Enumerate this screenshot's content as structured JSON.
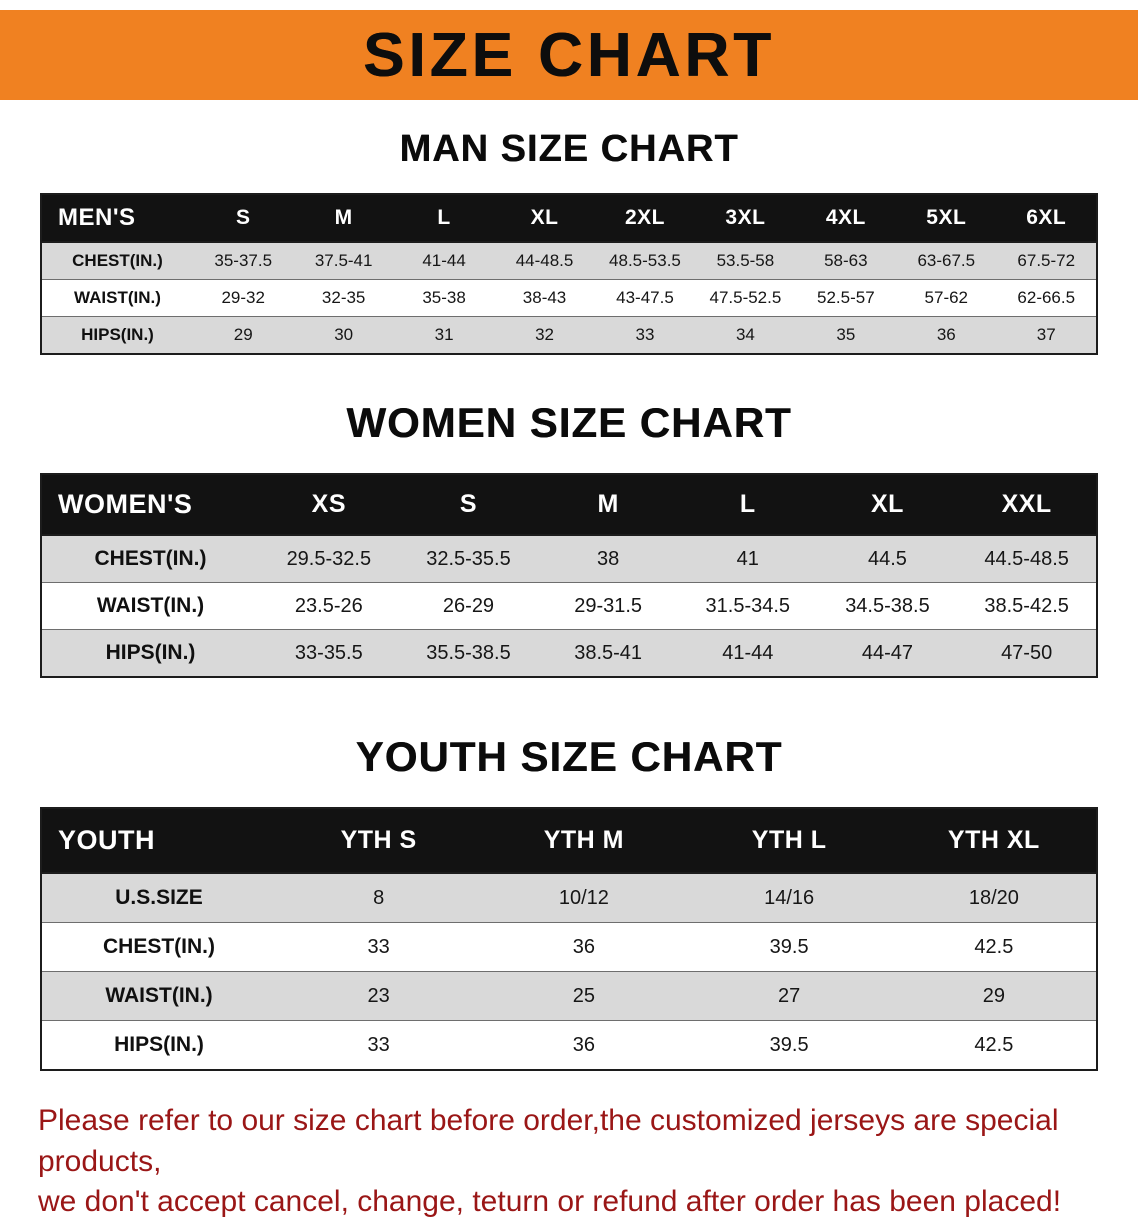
{
  "banner": {
    "title": "SIZE CHART"
  },
  "sections": [
    {
      "heading": "MAN SIZE CHART",
      "table": {
        "header": [
          "MEN'S",
          "S",
          "M",
          "L",
          "XL",
          "2XL",
          "3XL",
          "4XL",
          "5XL",
          "6XL"
        ],
        "rows": [
          [
            "CHEST(IN.)",
            "35-37.5",
            "37.5-41",
            "41-44",
            "44-48.5",
            "48.5-53.5",
            "53.5-58",
            "58-63",
            "63-67.5",
            "67.5-72"
          ],
          [
            "WAIST(IN.)",
            "29-32",
            "32-35",
            "35-38",
            "38-43",
            "43-47.5",
            "47.5-52.5",
            "52.5-57",
            "57-62",
            "62-66.5"
          ],
          [
            "HIPS(IN.)",
            "29",
            "30",
            "31",
            "32",
            "33",
            "34",
            "35",
            "36",
            "37"
          ]
        ]
      }
    },
    {
      "heading": "WOMEN SIZE CHART",
      "table": {
        "header": [
          "WOMEN'S",
          "XS",
          "S",
          "M",
          "L",
          "XL",
          "XXL"
        ],
        "rows": [
          [
            "CHEST(IN.)",
            "29.5-32.5",
            "32.5-35.5",
            "38",
            "41",
            "44.5",
            "44.5-48.5"
          ],
          [
            "WAIST(IN.)",
            "23.5-26",
            "26-29",
            "29-31.5",
            "31.5-34.5",
            "34.5-38.5",
            "38.5-42.5"
          ],
          [
            "HIPS(IN.)",
            "33-35.5",
            "35.5-38.5",
            "38.5-41",
            "41-44",
            "44-47",
            "47-50"
          ]
        ]
      }
    },
    {
      "heading": "YOUTH SIZE CHART",
      "table": {
        "header": [
          "YOUTH",
          "YTH S",
          "YTH M",
          "YTH L",
          "YTH XL"
        ],
        "rows": [
          [
            "U.S.SIZE",
            "8",
            "10/12",
            "14/16",
            "18/20"
          ],
          [
            "CHEST(IN.)",
            "33",
            "36",
            "39.5",
            "42.5"
          ],
          [
            "WAIST(IN.)",
            "23",
            "25",
            "27",
            "29"
          ],
          [
            "HIPS(IN.)",
            "33",
            "36",
            "39.5",
            "42.5"
          ]
        ]
      }
    }
  ],
  "footer": {
    "line1": "Please refer to our size chart before order,the customized jerseys are special products,",
    "line2": "we don't accept cancel, change, teturn or refund after order has been placed!"
  },
  "colors": {
    "banner_bg": "#F08121",
    "header_bg": "#121212",
    "row_alt_bg": "#d9d9d9",
    "footer_text": "#9a1616"
  }
}
